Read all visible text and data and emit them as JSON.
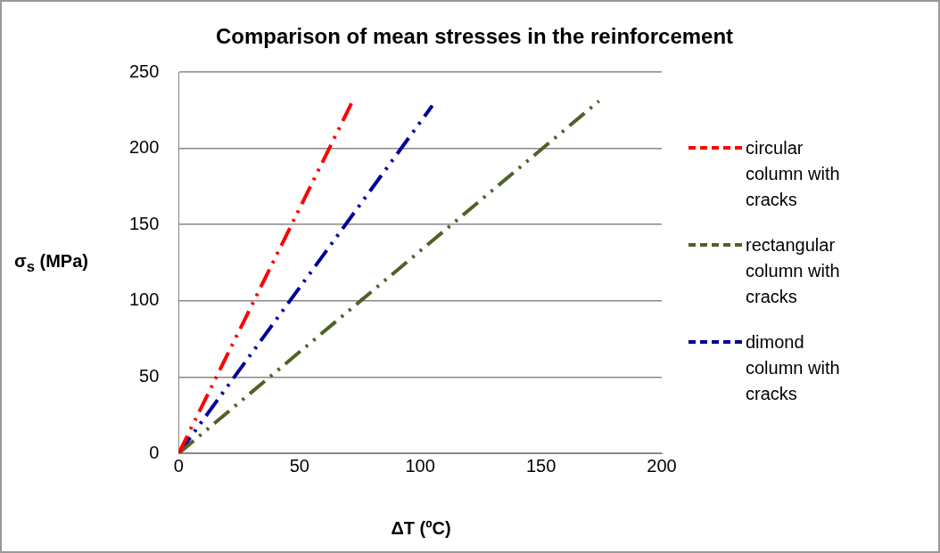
{
  "chart_data": {
    "type": "line",
    "title": "Comparison of mean stresses in the reinforcement",
    "xlabel": "ΔT (ºC)",
    "ylabel": "σ$_{s}$ (MPa)",
    "xlim": [
      0,
      200
    ],
    "xticks": [
      0,
      50,
      100,
      150,
      200
    ],
    "ylim": [
      0,
      250
    ],
    "yticks": [
      0,
      50,
      100,
      150,
      200,
      250
    ],
    "grid": "y",
    "legend": "right",
    "marker": "none",
    "line_style": "dashed",
    "series": [
      {
        "name": "circular column with cracks",
        "color": "#ff0000",
        "x": [
          0,
          72
        ],
        "values": [
          0,
          231
        ]
      },
      {
        "name": "rectangular column with cracks",
        "color": "#4f6228",
        "x": [
          0,
          174
        ],
        "values": [
          0,
          231
        ]
      },
      {
        "name": "dimond column with cracks",
        "color": "#000099",
        "x": [
          0,
          105
        ],
        "values": [
          0,
          228
        ]
      }
    ]
  }
}
